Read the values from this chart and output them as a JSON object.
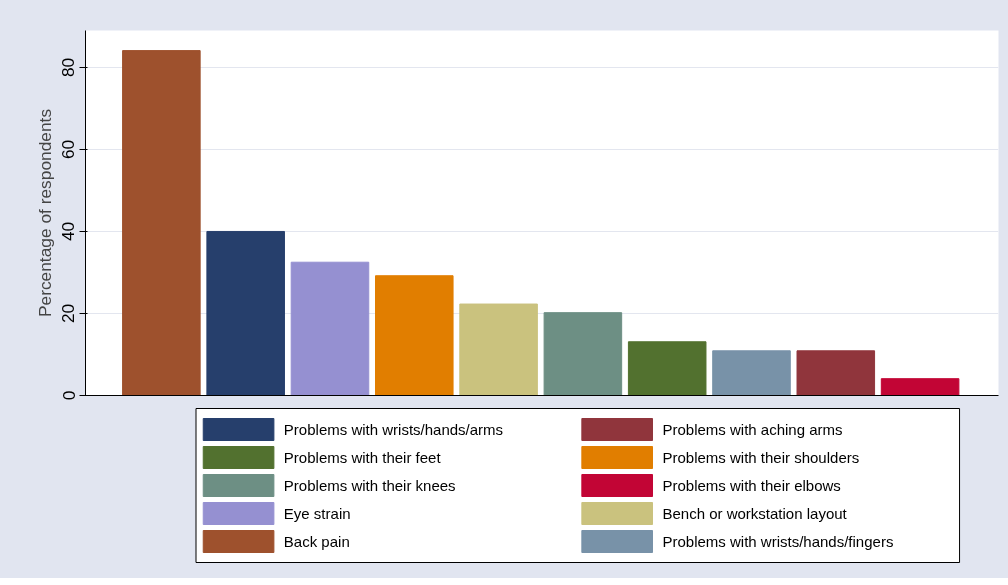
{
  "chart_data": {
    "type": "bar",
    "ylabel": "Percentage of respondents",
    "categories": [
      null,
      null,
      null,
      null,
      null,
      null,
      null,
      null,
      null,
      null
    ],
    "series": [
      {
        "name": "Problems with wrists/hands/arms",
        "color": "#263f6c",
        "values": [
          null,
          40,
          null,
          null,
          null,
          null,
          null,
          null,
          null,
          null
        ]
      },
      {
        "name": "Problems with their feet",
        "color": "#52712f",
        "values": [
          null,
          null,
          null,
          null,
          null,
          null,
          13.1,
          null,
          null,
          null
        ]
      },
      {
        "name": "Problems with their knees",
        "color": "#6d8f84",
        "values": [
          null,
          null,
          null,
          null,
          null,
          20.2,
          null,
          null,
          null,
          null
        ]
      },
      {
        "name": "Eye strain",
        "color": "#9590d1",
        "values": [
          null,
          null,
          32.5,
          null,
          null,
          null,
          null,
          null,
          null,
          null
        ]
      },
      {
        "name": "Back pain",
        "color": "#9e512d",
        "values": [
          84.1,
          null,
          null,
          null,
          null,
          null,
          null,
          null,
          null,
          null
        ]
      },
      {
        "name": "Problems with aching arms",
        "color": "#90353c",
        "values": [
          null,
          null,
          null,
          null,
          null,
          null,
          null,
          null,
          10.9,
          null
        ]
      },
      {
        "name": "Problems with their shoulders",
        "color": "#e17e00",
        "values": [
          null,
          null,
          null,
          29.2,
          null,
          null,
          null,
          null,
          null,
          null
        ]
      },
      {
        "name": "Problems with their elbows",
        "color": "#c20535",
        "values": [
          null,
          null,
          null,
          null,
          null,
          null,
          null,
          null,
          null,
          4.1
        ]
      },
      {
        "name": "Bench or workstation layout",
        "color": "#cac27e",
        "values": [
          null,
          null,
          null,
          null,
          22.3,
          null,
          null,
          null,
          null,
          null
        ]
      },
      {
        "name": "Problems with wrists/hands/fingers",
        "color": "#7892a8",
        "values": [
          null,
          null,
          null,
          null,
          null,
          null,
          null,
          10.9,
          null,
          null
        ]
      }
    ],
    "ylim": [
      0,
      89
    ],
    "yticks": [
      0,
      20,
      40,
      60,
      80
    ],
    "grid": "y",
    "legend": "bottom"
  }
}
